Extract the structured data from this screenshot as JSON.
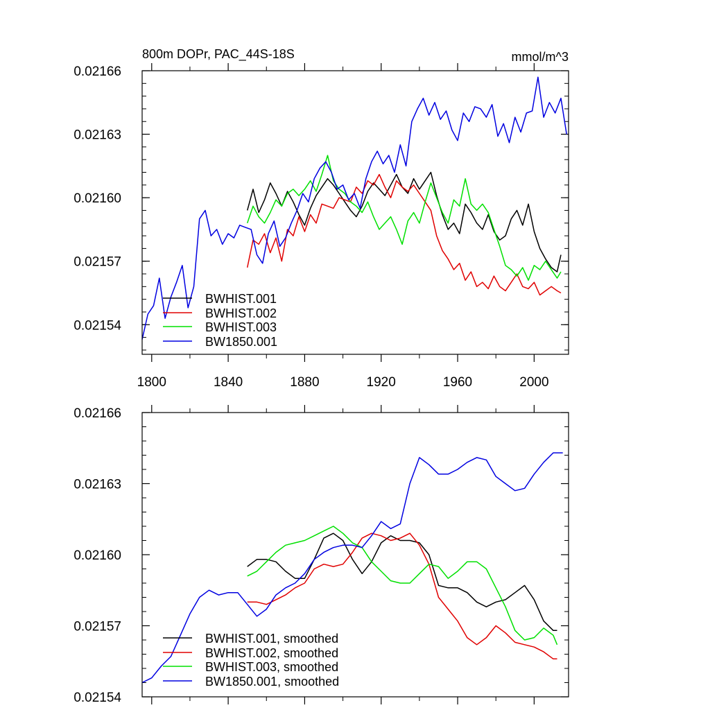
{
  "chart_data": [
    {
      "type": "line",
      "title": "800m DOPr, PAC_44S-18S",
      "units": "mmol/m^3",
      "xlabel": "",
      "ylabel": "",
      "xlim": [
        1795,
        2018
      ],
      "ylim": [
        0.021526,
        0.02166
      ],
      "xticks": [
        1800,
        1840,
        1880,
        1920,
        1960,
        2000
      ],
      "xtick_labels": [
        "1800",
        "1840",
        "1880",
        "1920",
        "1960",
        "2000"
      ],
      "yticks": [
        0.02154,
        0.02157,
        0.0216,
        0.02163,
        0.02166
      ],
      "ytick_labels": [
        "0.02154",
        "0.02157",
        "0.02160",
        "0.02163",
        "0.02166"
      ],
      "legend_position": "bottom-left",
      "series": [
        {
          "name": "BWHIST.001",
          "color": "#000000",
          "x": [
            1850,
            1853,
            1856,
            1859,
            1862,
            1865,
            1868,
            1871,
            1874,
            1877,
            1880,
            1883,
            1886,
            1889,
            1892,
            1895,
            1898,
            1901,
            1904,
            1907,
            1910,
            1913,
            1916,
            1919,
            1922,
            1925,
            1928,
            1931,
            1934,
            1937,
            1940,
            1943,
            1946,
            1949,
            1952,
            1955,
            1958,
            1961,
            1964,
            1967,
            1970,
            1973,
            1976,
            1979,
            1982,
            1985,
            1988,
            1991,
            1994,
            1997,
            2000,
            2003,
            2006,
            2009,
            2012,
            2014
          ],
          "y": [
            0.021594,
            0.021604,
            0.021593,
            0.021599,
            0.021607,
            0.021602,
            0.021596,
            0.021603,
            0.021598,
            0.021592,
            0.021587,
            0.021595,
            0.021601,
            0.021605,
            0.021609,
            0.021606,
            0.021602,
            0.021598,
            0.021594,
            0.021591,
            0.021596,
            0.021603,
            0.021607,
            0.021604,
            0.021601,
            0.021606,
            0.021611,
            0.021605,
            0.021602,
            0.021609,
            0.021604,
            0.021608,
            0.021612,
            0.021601,
            0.021592,
            0.021585,
            0.021588,
            0.021583,
            0.021597,
            0.021593,
            0.021588,
            0.021585,
            0.021592,
            0.021584,
            0.02158,
            0.021582,
            0.02159,
            0.021594,
            0.021587,
            0.021597,
            0.021584,
            0.021576,
            0.021571,
            0.021567,
            0.021565,
            0.021573
          ]
        },
        {
          "name": "BWHIST.002",
          "color": "#e00000",
          "x": [
            1850,
            1853,
            1856,
            1859,
            1862,
            1865,
            1868,
            1871,
            1874,
            1877,
            1880,
            1883,
            1886,
            1889,
            1892,
            1895,
            1898,
            1901,
            1904,
            1907,
            1910,
            1913,
            1916,
            1919,
            1922,
            1925,
            1928,
            1931,
            1934,
            1937,
            1940,
            1943,
            1946,
            1949,
            1952,
            1955,
            1958,
            1961,
            1964,
            1967,
            1970,
            1973,
            1976,
            1979,
            1982,
            1985,
            1988,
            1991,
            1994,
            1997,
            2000,
            2003,
            2006,
            2009,
            2012,
            2014
          ],
          "y": [
            0.021567,
            0.02158,
            0.021578,
            0.021583,
            0.021574,
            0.021581,
            0.02157,
            0.021585,
            0.021582,
            0.021591,
            0.021584,
            0.021592,
            0.021588,
            0.021597,
            0.021596,
            0.021595,
            0.0216,
            0.021599,
            0.021598,
            0.021605,
            0.021602,
            0.021608,
            0.021606,
            0.021611,
            0.021605,
            0.0216,
            0.021608,
            0.021605,
            0.021603,
            0.021606,
            0.021602,
            0.021598,
            0.021594,
            0.021582,
            0.021575,
            0.021571,
            0.021566,
            0.021569,
            0.021561,
            0.021565,
            0.021558,
            0.02156,
            0.021557,
            0.021563,
            0.021558,
            0.021556,
            0.02156,
            0.021564,
            0.021558,
            0.021557,
            0.02156,
            0.021554,
            0.021556,
            0.021558,
            0.021556,
            0.021555
          ]
        },
        {
          "name": "BWHIST.003",
          "color": "#00e000",
          "x": [
            1850,
            1853,
            1856,
            1859,
            1862,
            1865,
            1868,
            1871,
            1874,
            1877,
            1880,
            1883,
            1886,
            1889,
            1892,
            1895,
            1898,
            1901,
            1904,
            1907,
            1910,
            1913,
            1916,
            1919,
            1922,
            1925,
            1928,
            1931,
            1934,
            1937,
            1940,
            1943,
            1946,
            1949,
            1952,
            1955,
            1958,
            1961,
            1964,
            1967,
            1970,
            1973,
            1976,
            1979,
            1982,
            1985,
            1988,
            1991,
            1994,
            1997,
            2000,
            2003,
            2006,
            2009,
            2012,
            2014
          ],
          "y": [
            0.021588,
            0.021596,
            0.021591,
            0.021588,
            0.021593,
            0.021599,
            0.021596,
            0.021602,
            0.021604,
            0.021601,
            0.021604,
            0.021608,
            0.021603,
            0.021611,
            0.02162,
            0.021608,
            0.021604,
            0.021602,
            0.021598,
            0.021596,
            0.021593,
            0.021598,
            0.021591,
            0.021585,
            0.021588,
            0.021591,
            0.021585,
            0.021578,
            0.021589,
            0.021593,
            0.021588,
            0.021598,
            0.021607,
            0.0216,
            0.021593,
            0.021588,
            0.021599,
            0.021596,
            0.021609,
            0.021597,
            0.021594,
            0.021597,
            0.021593,
            0.021585,
            0.021577,
            0.021568,
            0.021566,
            0.021563,
            0.021567,
            0.021561,
            0.021568,
            0.021566,
            0.02157,
            0.021566,
            0.021562,
            0.021565
          ]
        },
        {
          "name": "BW1850.001",
          "color": "#0000e0",
          "x": [
            1795,
            1798,
            1801,
            1804,
            1807,
            1810,
            1813,
            1816,
            1819,
            1822,
            1825,
            1828,
            1831,
            1834,
            1837,
            1840,
            1843,
            1846,
            1849,
            1852,
            1855,
            1858,
            1861,
            1864,
            1867,
            1870,
            1873,
            1876,
            1879,
            1882,
            1885,
            1888,
            1891,
            1894,
            1897,
            1900,
            1903,
            1906,
            1909,
            1912,
            1915,
            1918,
            1921,
            1924,
            1927,
            1930,
            1933,
            1936,
            1939,
            1942,
            1945,
            1948,
            1951,
            1954,
            1957,
            1960,
            1963,
            1966,
            1969,
            1972,
            1975,
            1978,
            1981,
            1984,
            1987,
            1990,
            1993,
            1996,
            1999,
            2002,
            2005,
            2008,
            2011,
            2014,
            2017
          ],
          "y": [
            0.021533,
            0.021545,
            0.021549,
            0.021562,
            0.021543,
            0.021553,
            0.02156,
            0.021568,
            0.021548,
            0.021558,
            0.02159,
            0.021594,
            0.021582,
            0.021585,
            0.021578,
            0.021583,
            0.021581,
            0.021587,
            0.021586,
            0.021585,
            0.021573,
            0.021569,
            0.021583,
            0.021589,
            0.021577,
            0.021581,
            0.021588,
            0.021594,
            0.021602,
            0.021598,
            0.021609,
            0.021614,
            0.021617,
            0.021612,
            0.021604,
            0.021606,
            0.021599,
            0.021602,
            0.021595,
            0.021609,
            0.021617,
            0.021622,
            0.021616,
            0.02162,
            0.021612,
            0.021625,
            0.021615,
            0.021636,
            0.021642,
            0.021647,
            0.021639,
            0.021645,
            0.021637,
            0.021641,
            0.021632,
            0.021627,
            0.02164,
            0.021636,
            0.021643,
            0.021642,
            0.021638,
            0.021644,
            0.021629,
            0.021635,
            0.021626,
            0.021638,
            0.021631,
            0.02164,
            0.021641,
            0.021657,
            0.021638,
            0.021645,
            0.02164,
            0.021647,
            0.02163
          ]
        }
      ]
    },
    {
      "type": "line",
      "title": "",
      "xlabel": "",
      "ylabel": "",
      "xlim": [
        1795,
        2018
      ],
      "ylim": [
        0.02154,
        0.02166
      ],
      "xticks": [
        1800,
        1840,
        1880,
        1920,
        1960,
        2000
      ],
      "yticks": [
        0.02154,
        0.02157,
        0.0216,
        0.02163,
        0.02166
      ],
      "ytick_labels": [
        "0.02154",
        "0.02157",
        "0.02160",
        "0.02163",
        "0.02166"
      ],
      "legend_position": "bottom-left",
      "series": [
        {
          "name": "BWHIST.001, smoothed",
          "color": "#000000",
          "x": [
            1850,
            1855,
            1860,
            1865,
            1870,
            1875,
            1880,
            1885,
            1890,
            1895,
            1900,
            1905,
            1910,
            1915,
            1920,
            1925,
            1930,
            1935,
            1940,
            1945,
            1950,
            1955,
            1960,
            1965,
            1970,
            1975,
            1980,
            1985,
            1990,
            1995,
            2000,
            2005,
            2010,
            2012
          ],
          "y": [
            0.021595,
            0.021598,
            0.021598,
            0.021597,
            0.021593,
            0.02159,
            0.02159,
            0.021598,
            0.021607,
            0.021609,
            0.021606,
            0.021598,
            0.021592,
            0.021597,
            0.021605,
            0.021608,
            0.021606,
            0.021606,
            0.021605,
            0.0216,
            0.021587,
            0.021586,
            0.021586,
            0.021584,
            0.02158,
            0.021578,
            0.02158,
            0.021581,
            0.021584,
            0.021587,
            0.021581,
            0.021572,
            0.021568,
            0.021568
          ]
        },
        {
          "name": "BWHIST.002, smoothed",
          "color": "#e00000",
          "x": [
            1850,
            1855,
            1860,
            1865,
            1870,
            1875,
            1880,
            1885,
            1890,
            1895,
            1900,
            1905,
            1910,
            1915,
            1920,
            1925,
            1930,
            1935,
            1940,
            1945,
            1950,
            1955,
            1960,
            1965,
            1970,
            1975,
            1980,
            1985,
            1990,
            1995,
            2000,
            2005,
            2010,
            2012
          ],
          "y": [
            0.02158,
            0.02158,
            0.021579,
            0.021581,
            0.021583,
            0.021586,
            0.021588,
            0.021594,
            0.021596,
            0.021595,
            0.021596,
            0.021601,
            0.021607,
            0.021609,
            0.021608,
            0.021606,
            0.021607,
            0.021609,
            0.021604,
            0.021596,
            0.021582,
            0.021577,
            0.021572,
            0.021565,
            0.021562,
            0.021565,
            0.02157,
            0.021567,
            0.021563,
            0.021562,
            0.021561,
            0.021559,
            0.021556,
            0.021556
          ]
        },
        {
          "name": "BWHIST.003, smoothed",
          "color": "#00e000",
          "x": [
            1850,
            1855,
            1860,
            1865,
            1870,
            1875,
            1880,
            1885,
            1890,
            1895,
            1900,
            1905,
            1910,
            1915,
            1920,
            1925,
            1930,
            1935,
            1940,
            1945,
            1950,
            1955,
            1960,
            1965,
            1970,
            1975,
            1980,
            1985,
            1990,
            1995,
            2000,
            2005,
            2010,
            2012
          ],
          "y": [
            0.021591,
            0.021593,
            0.021597,
            0.021601,
            0.021604,
            0.021605,
            0.021606,
            0.021608,
            0.02161,
            0.021612,
            0.021609,
            0.021605,
            0.021603,
            0.021597,
            0.021593,
            0.021589,
            0.021588,
            0.021588,
            0.021592,
            0.021596,
            0.021595,
            0.02159,
            0.021593,
            0.021597,
            0.021597,
            0.021594,
            0.021586,
            0.021578,
            0.021568,
            0.021564,
            0.021565,
            0.021569,
            0.021566,
            0.021562
          ]
        },
        {
          "name": "BW1850.001, smoothed",
          "color": "#0000e0",
          "x": [
            1795,
            1800,
            1805,
            1810,
            1815,
            1820,
            1825,
            1830,
            1835,
            1840,
            1845,
            1850,
            1855,
            1860,
            1865,
            1870,
            1875,
            1880,
            1885,
            1890,
            1895,
            1900,
            1905,
            1910,
            1915,
            1920,
            1925,
            1930,
            1935,
            1940,
            1945,
            1950,
            1955,
            1960,
            1965,
            1970,
            1975,
            1980,
            1985,
            1990,
            1995,
            2000,
            2005,
            2010,
            2015
          ],
          "y": [
            0.021546,
            0.021548,
            0.021553,
            0.021557,
            0.021566,
            0.021575,
            0.021582,
            0.021585,
            0.021583,
            0.021584,
            0.021584,
            0.021579,
            0.021574,
            0.021577,
            0.021583,
            0.021586,
            0.021588,
            0.021592,
            0.021598,
            0.021601,
            0.021603,
            0.021604,
            0.021604,
            0.021603,
            0.021608,
            0.021614,
            0.021611,
            0.021613,
            0.02163,
            0.021641,
            0.021638,
            0.021634,
            0.021634,
            0.021636,
            0.021639,
            0.021641,
            0.02164,
            0.021633,
            0.02163,
            0.021627,
            0.021628,
            0.021634,
            0.021639,
            0.021643,
            0.021643
          ]
        }
      ]
    }
  ]
}
